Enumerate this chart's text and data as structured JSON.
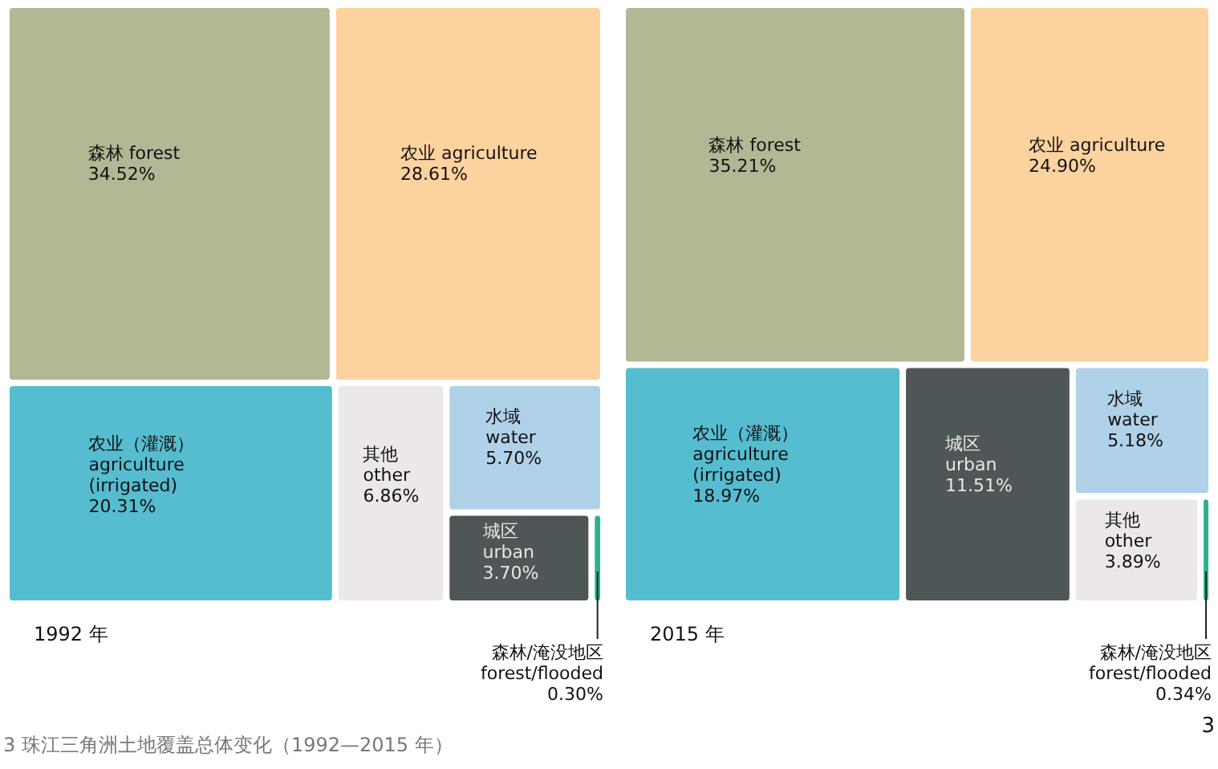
{
  "chart_data": [
    {
      "type": "other",
      "title": "1992 年",
      "categories": [
        "森林 forest",
        "农业 agriculture",
        "农业（灌溉）\nagriculture\n(irrigated)",
        "其他\nother",
        "水域\nwater",
        "城区\nurban",
        "森林/淹没地区\nforest/flooded"
      ],
      "values": [
        34.52,
        28.61,
        20.31,
        6.86,
        5.7,
        3.7,
        0.3
      ],
      "value_labels": [
        "34.52%",
        "28.61%",
        "20.31%",
        "6.86%",
        "5.70%",
        "3.70%",
        "0.30%"
      ],
      "colors": [
        "#b0b894",
        "#fcd29f",
        "#56bccf",
        "#ece7ea",
        "#b0d2e8",
        "#4f5657",
        "#2bb18c"
      ],
      "annotations": [
        "3 珠江三角洲土地覆盖总体变化（1992—2015 年）"
      ]
    },
    {
      "type": "other",
      "title": "2015 年",
      "categories": [
        "森林 forest",
        "农业 agriculture",
        "农业（灌溉）\nagriculture\n(irrigated)",
        "城区\nurban",
        "水域\nwater",
        "其他\nother",
        "森林/淹没地区\nforest/flooded"
      ],
      "values": [
        35.21,
        24.9,
        18.97,
        11.51,
        5.18,
        3.89,
        0.34
      ],
      "value_labels": [
        "35.21%",
        "24.90%",
        "18.97%",
        "11.51%",
        "5.18%",
        "3.89%",
        "0.34%"
      ],
      "colors": [
        "#b0b894",
        "#fcd29f",
        "#56bccf",
        "#4f5657",
        "#b0d2e8",
        "#ece7ea",
        "#2bb18c"
      ],
      "annotations": [
        "3"
      ]
    }
  ]
}
